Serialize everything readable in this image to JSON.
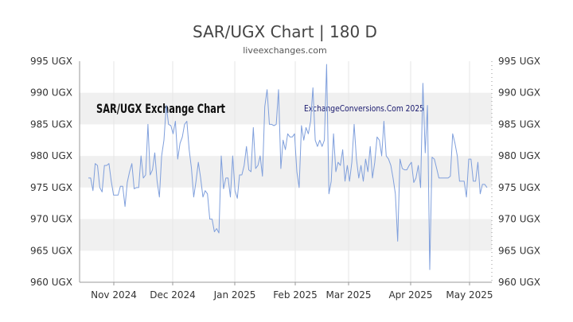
{
  "chart_data": {
    "type": "line",
    "title": "SAR/UGX Chart | 180 D",
    "subtitle": "liveexchanges.com",
    "watermark_left": "SAR/UGX Exchange Chart",
    "watermark_right": "ExchangeConversions.Com 2025",
    "xlabel": "",
    "ylabel": "",
    "ylim": [
      960,
      995
    ],
    "y_ticks": [
      "960 UGX",
      "965 UGX",
      "970 UGX",
      "975 UGX",
      "980 UGX",
      "985 UGX",
      "990 UGX",
      "995 UGX"
    ],
    "x_ticks": [
      "Nov 2024",
      "Dec 2024",
      "Jan 2025",
      "Feb 2025",
      "Mar 2025",
      "Apr 2025",
      "May 2025"
    ],
    "grid": "alternating horizontal bands",
    "line_color": "#7f9fdc",
    "series": [
      {
        "values": [
          976.5,
          976.5,
          974.5,
          978.8,
          978.5,
          975.0,
          974.3,
          978.5,
          978.5,
          978.8,
          976.0,
          973.8,
          973.8,
          973.8,
          975.2,
          975.2,
          972.0,
          975.8,
          977.5,
          978.8,
          974.8,
          975.0,
          975.0,
          980.0,
          976.5,
          977.0,
          985.0,
          977.0,
          977.8,
          980.5,
          976.0,
          973.5,
          980.0,
          982.5,
          988.0,
          985.0,
          984.8,
          983.5,
          985.5,
          979.5,
          982.0,
          983.0,
          985.0,
          985.5,
          981.0,
          978.0,
          973.5,
          976.0,
          979.0,
          976.5,
          973.5,
          974.5,
          974.0,
          970.0,
          970.0,
          968.0,
          968.5,
          967.8,
          980.0,
          974.8,
          976.5,
          976.5,
          973.5,
          980.0,
          974.5,
          973.3,
          977.0,
          977.0,
          978.5,
          981.5,
          977.8,
          977.5,
          984.5,
          978.0,
          978.5,
          980.0,
          976.8,
          987.8,
          990.5,
          985.0,
          985.0,
          984.8,
          985.0,
          990.5,
          978.0,
          982.5,
          981.0,
          983.5,
          983.0,
          983.0,
          983.5,
          977.5,
          975.0,
          984.8,
          982.5,
          984.5,
          983.5,
          985.5,
          990.8,
          982.5,
          981.5,
          982.5,
          981.5,
          982.5,
          994.5,
          974.0,
          976.0,
          983.5,
          977.5,
          979.0,
          978.5,
          981.0,
          976.0,
          978.5,
          976.0,
          979.0,
          985.0,
          979.5,
          976.5,
          978.5,
          976.0,
          979.5,
          977.5,
          981.5,
          976.5,
          979.0,
          983.0,
          982.5,
          980.0,
          985.5,
          980.0,
          979.5,
          978.5,
          976.5,
          974.0,
          966.5,
          979.5,
          978.0,
          977.8,
          977.8,
          978.5,
          979.0,
          975.8,
          976.5,
          978.5,
          975.0,
          991.5,
          980.5,
          988.0,
          962.0,
          979.8,
          979.5,
          978.0,
          976.5,
          976.5,
          976.5,
          976.5,
          976.5,
          976.8,
          983.5,
          982.0,
          980.0,
          976.0,
          976.0,
          976.0,
          973.5,
          979.5,
          979.5,
          976.0,
          976.0,
          979.0,
          974.0,
          975.5,
          975.5,
          975.0
        ]
      }
    ]
  }
}
